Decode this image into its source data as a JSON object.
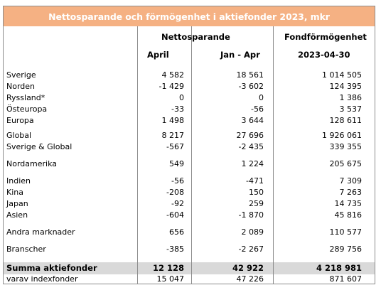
{
  "title": "Nettosparande och förmögenhet i aktiefonder 2023, mkr",
  "colors": {
    "title_bg": "#f5b183",
    "title_fg": "#ffffff",
    "sum_bg": "#d9d9d9",
    "grid": "#8c8c8c"
  },
  "headers": {
    "group_net": "Nettosparande",
    "group_wealth": "Fondförmögenhet",
    "col_april": "April",
    "col_janapr": "Jan - Apr",
    "col_date": "2023-04-30"
  },
  "rows": [
    {
      "label": "Sverige",
      "april": "4 582",
      "janapr": "18 561",
      "wealth": "1 014 505"
    },
    {
      "label": "Norden",
      "april": "-1 429",
      "janapr": "-3 602",
      "wealth": "124 395"
    },
    {
      "label": "Ryssland*",
      "april": "0",
      "janapr": "0",
      "wealth": "1 386"
    },
    {
      "label": "Östeuropa",
      "april": "-33",
      "janapr": "-56",
      "wealth": "3 537"
    },
    {
      "label": "Europa",
      "april": "1 498",
      "janapr": "3 644",
      "wealth": "128 611"
    },
    {
      "label": "Global",
      "april": "8 217",
      "janapr": "27 696",
      "wealth": "1 926 061"
    },
    {
      "label": "Sverige & Global",
      "april": "-567",
      "janapr": "-2 435",
      "wealth": "339 355"
    },
    {
      "label": "Nordamerika",
      "april": "549",
      "janapr": "1 224",
      "wealth": "205 675"
    },
    {
      "label": "Indien",
      "april": "-56",
      "janapr": "-471",
      "wealth": "7 309"
    },
    {
      "label": "Kina",
      "april": "-208",
      "janapr": "150",
      "wealth": "7 263"
    },
    {
      "label": "Japan",
      "april": "-92",
      "janapr": "259",
      "wealth": "14 735"
    },
    {
      "label": "Asien",
      "april": "-604",
      "janapr": "-1 870",
      "wealth": "45 816"
    },
    {
      "label": "Andra marknader",
      "april": "656",
      "janapr": "2 089",
      "wealth": "110 577"
    },
    {
      "label": "Branscher",
      "april": "-385",
      "janapr": "-2 267",
      "wealth": "289 756"
    }
  ],
  "total": {
    "label": "Summa aktiefonder",
    "april": "12 128",
    "janapr": "42 922",
    "wealth": "4 218 981"
  },
  "index_row": {
    "label": "varav indexfonder",
    "april": "15 047",
    "janapr": "47 226",
    "wealth": "871 607"
  }
}
